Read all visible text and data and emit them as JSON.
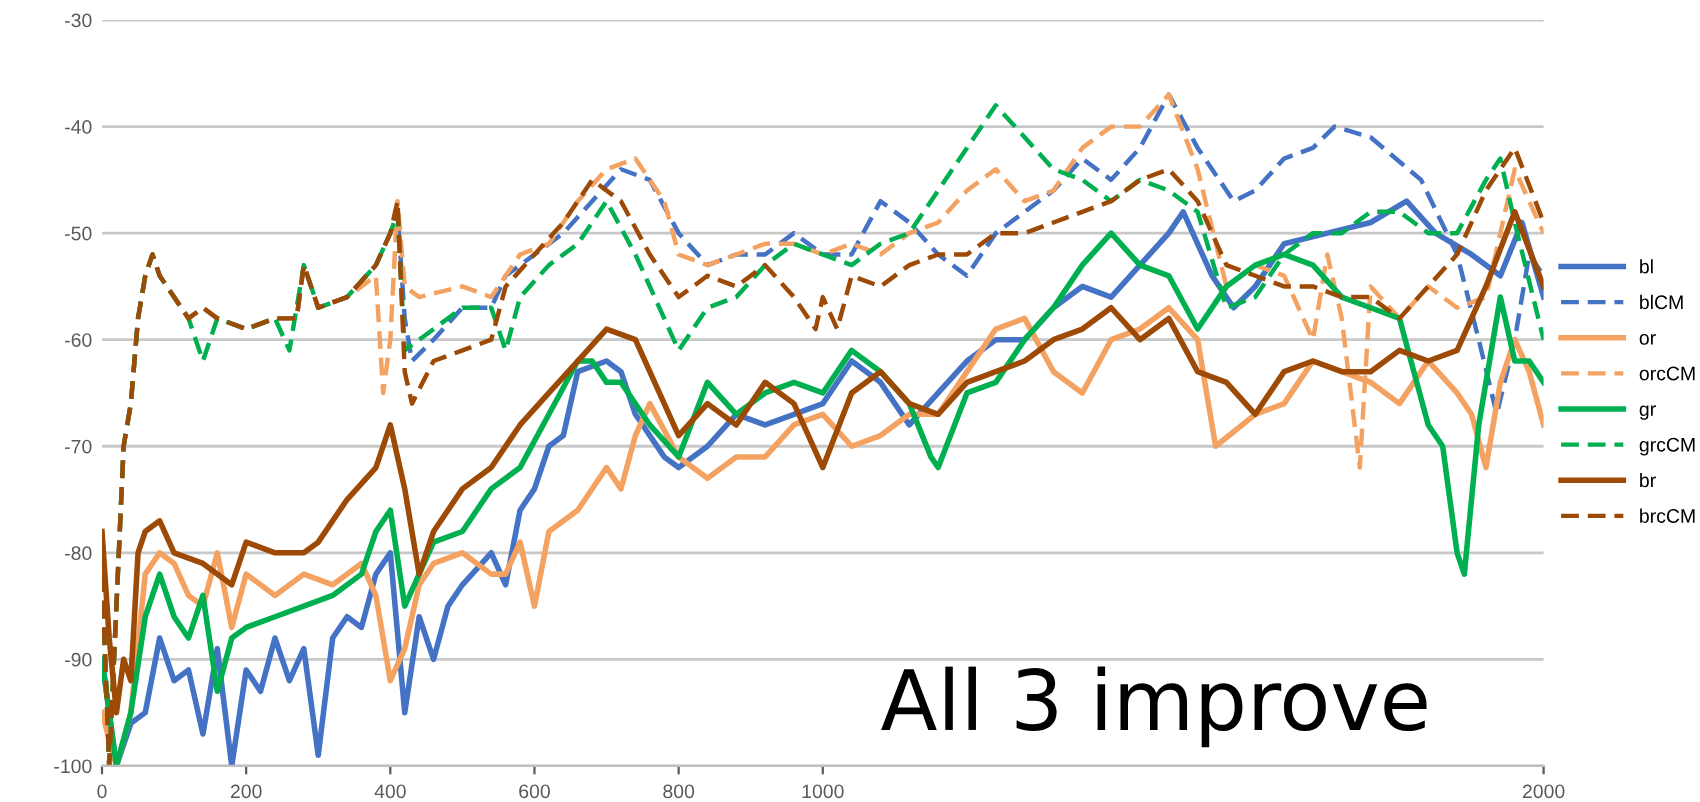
{
  "chart_data": {
    "type": "line",
    "xlim": [
      0,
      2000
    ],
    "ylim": [
      -100,
      -30
    ],
    "xticks": [
      0,
      200,
      400,
      600,
      800,
      1000,
      2000
    ],
    "yticks": [
      -100,
      -90,
      -80,
      -70,
      -60,
      -50,
      -40,
      -30
    ],
    "grid": "y",
    "legend": "right",
    "marker": "none",
    "annotations": [
      "All 3 improve"
    ],
    "series": [
      {
        "name": "bl",
        "color": "#4472c4",
        "line_style": "solid",
        "x": [
          0,
          20,
          40,
          60,
          80,
          100,
          120,
          140,
          160,
          180,
          200,
          220,
          240,
          260,
          280,
          300,
          320,
          340,
          360,
          380,
          400,
          420,
          440,
          460,
          480,
          500,
          540,
          560,
          580,
          600,
          620,
          640,
          660,
          700,
          720,
          740,
          780,
          800,
          840,
          880,
          920,
          960,
          1000,
          1040,
          1080,
          1120,
          1160,
          1200,
          1240,
          1280,
          1320,
          1360,
          1400,
          1440,
          1480,
          1500,
          1540,
          1570,
          1600,
          1640,
          1700,
          1760,
          1810,
          1850,
          1900,
          1940,
          1970,
          2000
        ],
        "values": [
          -90,
          -100,
          -96,
          -95,
          -88,
          -92,
          -91,
          -97,
          -89,
          -100,
          -91,
          -93,
          -88,
          -92,
          -89,
          -99,
          -88,
          -86,
          -87,
          -82,
          -80,
          -95,
          -86,
          -90,
          -85,
          -83,
          -80,
          -83,
          -76,
          -74,
          -70,
          -69,
          -63,
          -62,
          -63,
          -67,
          -71,
          -72,
          -70,
          -67,
          -68,
          -67,
          -66,
          -62,
          -64,
          -68,
          -65,
          -62,
          -60,
          -60,
          -57,
          -55,
          -56,
          -53,
          -50,
          -48,
          -54,
          -57,
          -55,
          -51,
          -50,
          -49,
          -47,
          -50,
          -52,
          -54,
          -49,
          -56
        ]
      },
      {
        "name": "blCM",
        "color": "#4472c4",
        "line_style": "dashed",
        "x": [
          0,
          10,
          20,
          30,
          40,
          50,
          60,
          70,
          80,
          100,
          120,
          140,
          160,
          200,
          240,
          270,
          280,
          300,
          340,
          380,
          400,
          410,
          420,
          430,
          460,
          500,
          540,
          560,
          600,
          640,
          680,
          720,
          760,
          800,
          840,
          880,
          920,
          960,
          1000,
          1040,
          1080,
          1120,
          1160,
          1200,
          1240,
          1280,
          1320,
          1360,
          1400,
          1440,
          1480,
          1520,
          1570,
          1600,
          1640,
          1680,
          1710,
          1760,
          1830,
          1880,
          1910,
          1935,
          1960,
          1980,
          2000
        ],
        "values": [
          -82,
          -100,
          -85,
          -70,
          -66,
          -58,
          -54,
          -52,
          -54,
          -56,
          -58,
          -57,
          -58,
          -59,
          -58,
          -58,
          -53,
          -57,
          -56,
          -53,
          -50,
          -48,
          -58,
          -62,
          -60,
          -57,
          -57,
          -54,
          -52,
          -50,
          -47,
          -44,
          -45,
          -50,
          -53,
          -52,
          -52,
          -50,
          -52,
          -52,
          -47,
          -49,
          -52,
          -54,
          -50,
          -48,
          -46,
          -43,
          -45,
          -42,
          -37,
          -42,
          -47,
          -46,
          -43,
          -42,
          -40,
          -41,
          -45,
          -52,
          -60,
          -67,
          -60,
          -52,
          -54
        ]
      },
      {
        "name": "or",
        "color": "#f4a261",
        "line_style": "solid",
        "x": [
          0,
          20,
          40,
          60,
          80,
          100,
          120,
          140,
          160,
          180,
          200,
          240,
          280,
          320,
          360,
          380,
          400,
          420,
          440,
          460,
          500,
          540,
          560,
          580,
          600,
          620,
          660,
          700,
          720,
          740,
          760,
          800,
          840,
          880,
          920,
          960,
          1000,
          1040,
          1080,
          1120,
          1160,
          1200,
          1240,
          1280,
          1320,
          1360,
          1400,
          1440,
          1480,
          1520,
          1545,
          1600,
          1640,
          1680,
          1720,
          1760,
          1800,
          1840,
          1880,
          1900,
          1920,
          1940,
          1960,
          1980,
          2000
        ],
        "values": [
          -95,
          -100,
          -95,
          -82,
          -80,
          -81,
          -84,
          -85,
          -80,
          -87,
          -82,
          -84,
          -82,
          -83,
          -81,
          -84,
          -92,
          -89,
          -83,
          -81,
          -80,
          -82,
          -82,
          -79,
          -85,
          -78,
          -76,
          -72,
          -74,
          -69,
          -66,
          -71,
          -73,
          -71,
          -71,
          -68,
          -67,
          -70,
          -69,
          -67,
          -67,
          -63,
          -59,
          -58,
          -63,
          -65,
          -60,
          -59,
          -57,
          -60,
          -70,
          -67,
          -66,
          -62,
          -63,
          -64,
          -66,
          -62,
          -65,
          -67,
          -72,
          -64,
          -60,
          -63,
          -68
        ]
      },
      {
        "name": "orcCM",
        "color": "#f4a261",
        "line_style": "dashed",
        "x": [
          0,
          10,
          20,
          30,
          40,
          50,
          60,
          70,
          80,
          100,
          120,
          140,
          160,
          200,
          240,
          270,
          280,
          300,
          340,
          380,
          390,
          400,
          410,
          420,
          440,
          500,
          540,
          580,
          620,
          660,
          700,
          740,
          780,
          800,
          840,
          880,
          920,
          960,
          1000,
          1040,
          1080,
          1120,
          1160,
          1200,
          1240,
          1280,
          1320,
          1360,
          1400,
          1440,
          1480,
          1520,
          1560,
          1600,
          1640,
          1680,
          1700,
          1720,
          1745,
          1760,
          1800,
          1840,
          1880,
          1920,
          1960,
          2000
        ],
        "values": [
          -82,
          -100,
          -85,
          -70,
          -66,
          -58,
          -54,
          -52,
          -54,
          -56,
          -58,
          -57,
          -58,
          -59,
          -58,
          -58,
          -53,
          -57,
          -56,
          -54,
          -65,
          -60,
          -47,
          -55,
          -56,
          -55,
          -56,
          -52,
          -51,
          -47,
          -44,
          -43,
          -47,
          -52,
          -53,
          -52,
          -51,
          -51,
          -52,
          -51,
          -52,
          -50,
          -49,
          -46,
          -44,
          -47,
          -46,
          -42,
          -40,
          -40,
          -37,
          -44,
          -55,
          -53,
          -54,
          -60,
          -52,
          -58,
          -72,
          -55,
          -58,
          -55,
          -57,
          -56,
          -44,
          -50
        ]
      },
      {
        "name": "gr",
        "color": "#00b050",
        "line_style": "solid",
        "x": [
          0,
          20,
          40,
          60,
          80,
          100,
          120,
          140,
          160,
          180,
          200,
          240,
          280,
          320,
          360,
          380,
          400,
          420,
          440,
          460,
          500,
          540,
          580,
          620,
          660,
          680,
          700,
          720,
          760,
          800,
          840,
          880,
          920,
          960,
          1000,
          1040,
          1080,
          1120,
          1150,
          1160,
          1200,
          1240,
          1280,
          1320,
          1360,
          1400,
          1440,
          1480,
          1520,
          1560,
          1600,
          1640,
          1680,
          1720,
          1760,
          1800,
          1840,
          1860,
          1880,
          1890,
          1910,
          1940,
          1960,
          1980,
          2000
        ],
        "values": [
          -90,
          -100,
          -95,
          -86,
          -82,
          -86,
          -88,
          -84,
          -93,
          -88,
          -87,
          -86,
          -85,
          -84,
          -82,
          -78,
          -76,
          -85,
          -82,
          -79,
          -78,
          -74,
          -72,
          -67,
          -62,
          -62,
          -64,
          -64,
          -68,
          -71,
          -64,
          -67,
          -65,
          -64,
          -65,
          -61,
          -63,
          -66,
          -71,
          -72,
          -65,
          -64,
          -60,
          -57,
          -53,
          -50,
          -53,
          -54,
          -59,
          -55,
          -53,
          -52,
          -53,
          -56,
          -57,
          -58,
          -68,
          -70,
          -80,
          -82,
          -68,
          -56,
          -62,
          -62,
          -64
        ]
      },
      {
        "name": "grcCM",
        "color": "#00b050",
        "line_style": "dashed",
        "x": [
          0,
          10,
          20,
          30,
          40,
          50,
          60,
          70,
          80,
          100,
          120,
          140,
          160,
          200,
          240,
          260,
          280,
          300,
          340,
          380,
          400,
          410,
          420,
          440,
          500,
          540,
          560,
          580,
          620,
          660,
          700,
          740,
          780,
          800,
          840,
          880,
          920,
          960,
          1000,
          1040,
          1080,
          1120,
          1160,
          1200,
          1240,
          1280,
          1320,
          1360,
          1400,
          1440,
          1480,
          1520,
          1560,
          1600,
          1640,
          1680,
          1720,
          1760,
          1800,
          1840,
          1880,
          1920,
          1940,
          1960,
          2000
        ],
        "values": [
          -82,
          -100,
          -85,
          -70,
          -66,
          -58,
          -54,
          -52,
          -54,
          -56,
          -58,
          -62,
          -58,
          -59,
          -58,
          -61,
          -53,
          -57,
          -56,
          -53,
          -50,
          -48,
          -61,
          -60,
          -57,
          -57,
          -61,
          -56,
          -53,
          -51,
          -47,
          -52,
          -58,
          -61,
          -57,
          -56,
          -53,
          -51,
          -52,
          -53,
          -51,
          -50,
          -46,
          -42,
          -38,
          -41,
          -44,
          -45,
          -47,
          -45,
          -46,
          -48,
          -57,
          -56,
          -52,
          -50,
          -50,
          -48,
          -48,
          -50,
          -50,
          -45,
          -43,
          -49,
          -60
        ]
      },
      {
        "name": "br",
        "color": "#9c4a06",
        "line_style": "solid",
        "x": [
          0,
          10,
          20,
          30,
          40,
          50,
          60,
          80,
          100,
          140,
          180,
          200,
          240,
          280,
          300,
          340,
          380,
          400,
          420,
          440,
          460,
          500,
          540,
          580,
          620,
          660,
          700,
          740,
          780,
          800,
          840,
          880,
          920,
          960,
          1000,
          1040,
          1080,
          1120,
          1160,
          1200,
          1240,
          1280,
          1320,
          1360,
          1400,
          1440,
          1480,
          1520,
          1560,
          1600,
          1640,
          1680,
          1720,
          1760,
          1800,
          1840,
          1880,
          1920,
          1960,
          2000
        ],
        "values": [
          -78,
          -88,
          -95,
          -90,
          -92,
          -80,
          -78,
          -77,
          -80,
          -81,
          -83,
          -79,
          -80,
          -80,
          -79,
          -75,
          -72,
          -68,
          -74,
          -82,
          -78,
          -74,
          -72,
          -68,
          -65,
          -62,
          -59,
          -60,
          -66,
          -69,
          -66,
          -68,
          -64,
          -66,
          -72,
          -65,
          -63,
          -66,
          -67,
          -64,
          -63,
          -62,
          -60,
          -59,
          -57,
          -60,
          -58,
          -63,
          -64,
          -67,
          -63,
          -62,
          -63,
          -63,
          -61,
          -62,
          -61,
          -55,
          -48,
          -55
        ]
      },
      {
        "name": "brcCM",
        "color": "#9c4a06",
        "line_style": "dashed",
        "x": [
          0,
          10,
          20,
          30,
          40,
          50,
          60,
          70,
          80,
          100,
          120,
          140,
          160,
          200,
          240,
          270,
          280,
          300,
          340,
          380,
          400,
          410,
          420,
          430,
          460,
          500,
          540,
          560,
          600,
          640,
          680,
          720,
          760,
          800,
          840,
          880,
          920,
          960,
          990,
          1000,
          1020,
          1040,
          1080,
          1120,
          1160,
          1200,
          1240,
          1280,
          1320,
          1360,
          1400,
          1440,
          1480,
          1520,
          1560,
          1600,
          1640,
          1680,
          1720,
          1760,
          1800,
          1840,
          1880,
          1920,
          1960,
          2000
        ],
        "values": [
          -82,
          -100,
          -85,
          -70,
          -66,
          -58,
          -54,
          -52,
          -54,
          -56,
          -58,
          -57,
          -58,
          -59,
          -58,
          -58,
          -53,
          -57,
          -56,
          -53,
          -50,
          -47,
          -63,
          -66,
          -62,
          -61,
          -60,
          -55,
          -52,
          -49,
          -45,
          -47,
          -52,
          -56,
          -54,
          -55,
          -53,
          -56,
          -59,
          -56,
          -59,
          -54,
          -55,
          -53,
          -52,
          -52,
          -50,
          -50,
          -49,
          -48,
          -47,
          -45,
          -44,
          -47,
          -53,
          -54,
          -55,
          -55,
          -56,
          -56,
          -58,
          -55,
          -52,
          -46,
          -42,
          -49
        ]
      }
    ]
  }
}
